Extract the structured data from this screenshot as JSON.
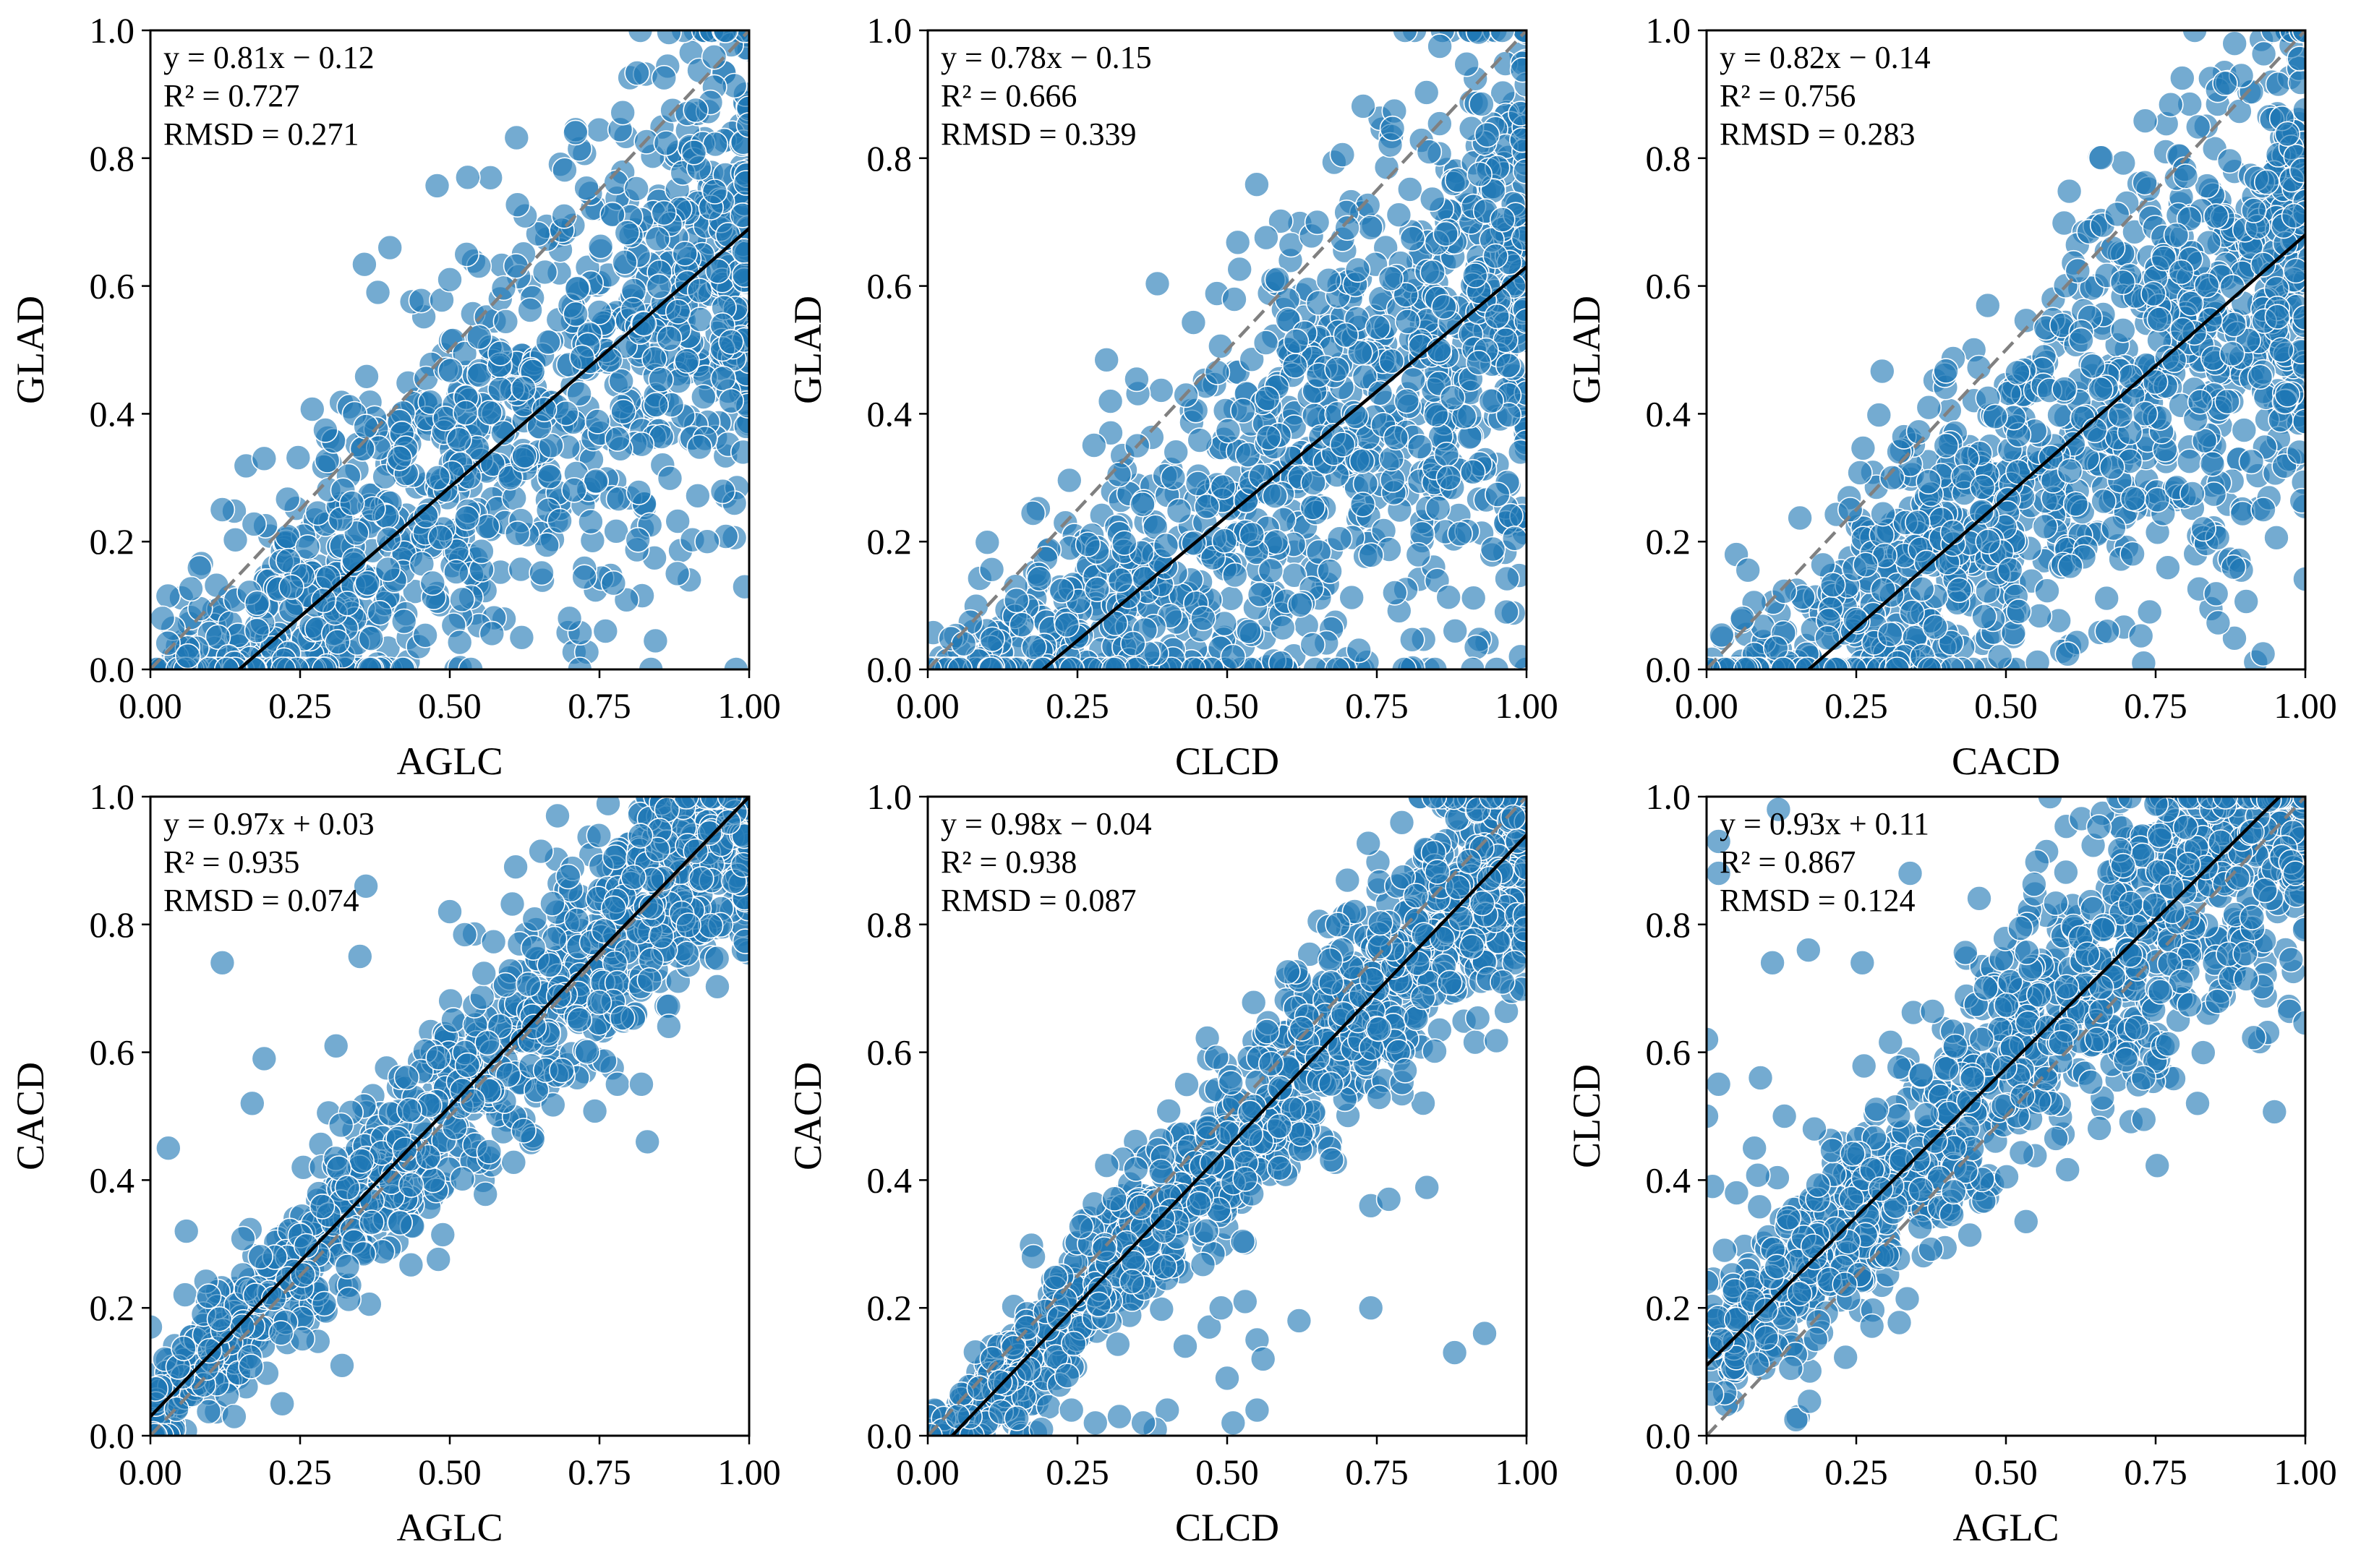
{
  "figure": {
    "panel_count": 6,
    "layout": "2 rows x 3 columns"
  },
  "style": {
    "marker_color": "#1f77b4",
    "marker_edge_color": "#ffffff",
    "fit_line_color": "#000000",
    "identity_line_color": "#808080"
  },
  "chart_data": [
    {
      "type": "scatter",
      "panel": "top-left",
      "xlabel": "AGLC",
      "ylabel": "GLAD",
      "xlim": [
        0,
        1
      ],
      "ylim": [
        0,
        1
      ],
      "xticks": [
        "0.00",
        "0.25",
        "0.50",
        "0.75",
        "1.00"
      ],
      "yticks": [
        "0.0",
        "0.2",
        "0.4",
        "0.6",
        "0.8",
        "1.0"
      ],
      "fit": {
        "slope": 0.81,
        "intercept": -0.12
      },
      "identity_line": true,
      "stats_text": [
        "y = 0.81x − 0.12",
        "R² = 0.727",
        "RMSD = 0.271"
      ],
      "n_points": 1200,
      "outliers": [
        [
          0.38,
          0.59
        ],
        [
          0.4,
          0.66
        ],
        [
          0.5,
          0.61
        ],
        [
          0.53,
          0.77
        ],
        [
          0.71,
          0.84
        ],
        [
          0.19,
          0.33
        ],
        [
          0.12,
          0.25
        ],
        [
          0.02,
          0.08
        ],
        [
          0.36,
          0.38
        ],
        [
          0.48,
          0.3
        ],
        [
          0.7,
          0.08
        ],
        [
          0.76,
          0.06
        ],
        [
          0.9,
          0.14
        ],
        [
          0.88,
          0.15
        ],
        [
          0.93,
          0.2
        ],
        [
          0.99,
          0.34
        ],
        [
          0.97,
          0.42
        ],
        [
          0.62,
          0.05
        ]
      ]
    },
    {
      "type": "scatter",
      "panel": "top-middle",
      "xlabel": "CLCD",
      "ylabel": "GLAD",
      "xlim": [
        0,
        1
      ],
      "ylim": [
        0,
        1
      ],
      "xticks": [
        "0.00",
        "0.25",
        "0.50",
        "0.75",
        "1.00"
      ],
      "yticks": [
        "0.0",
        "0.2",
        "0.4",
        "0.6",
        "0.8",
        "1.0"
      ],
      "fit": {
        "slope": 0.78,
        "intercept": -0.15
      },
      "identity_line": true,
      "stats_text": [
        "y = 0.78x − 0.15",
        "R² = 0.666",
        "RMSD = 0.339"
      ],
      "n_points": 1200,
      "outliers": [
        [
          0.35,
          0.35
        ],
        [
          0.41,
          0.3
        ],
        [
          0.46,
          0.08
        ],
        [
          0.51,
          0.02
        ],
        [
          0.59,
          0.01
        ],
        [
          0.72,
          0.03
        ],
        [
          0.78,
          0.12
        ],
        [
          0.91,
          0.0
        ],
        [
          0.95,
          0.0
        ],
        [
          0.99,
          0.34
        ],
        [
          0.99,
          0.02
        ],
        [
          0.87,
          0.3
        ],
        [
          0.92,
          0.48
        ],
        [
          0.06,
          0.04
        ],
        [
          0.8,
          0.42
        ]
      ]
    },
    {
      "type": "scatter",
      "panel": "top-right",
      "xlabel": "CACD",
      "ylabel": "GLAD",
      "xlim": [
        0,
        1
      ],
      "ylim": [
        0,
        1
      ],
      "xticks": [
        "0.00",
        "0.25",
        "0.50",
        "0.75",
        "1.00"
      ],
      "yticks": [
        "0.0",
        "0.2",
        "0.4",
        "0.6",
        "0.8",
        "1.0"
      ],
      "fit": {
        "slope": 0.82,
        "intercept": -0.14
      },
      "identity_line": true,
      "stats_text": [
        "y = 0.82x − 0.14",
        "R² = 0.756",
        "RMSD = 0.283"
      ],
      "n_points": 1200,
      "outliers": [
        [
          0.24,
          0.25
        ],
        [
          0.31,
          0.3
        ],
        [
          0.4,
          0.35
        ],
        [
          0.47,
          0.2
        ],
        [
          0.74,
          0.09
        ],
        [
          0.73,
          0.01
        ],
        [
          0.88,
          0.16
        ],
        [
          0.93,
          0.25
        ],
        [
          0.99,
          0.34
        ],
        [
          0.97,
          0.43
        ],
        [
          0.96,
          0.5
        ],
        [
          0.06,
          0.08
        ],
        [
          0.83,
          0.22
        ]
      ]
    },
    {
      "type": "scatter",
      "panel": "bottom-left",
      "xlabel": "AGLC",
      "ylabel": "CACD",
      "xlim": [
        0,
        1
      ],
      "ylim": [
        0,
        1
      ],
      "xticks": [
        "0.00",
        "0.25",
        "0.50",
        "0.75",
        "1.00"
      ],
      "yticks": [
        "0.0",
        "0.2",
        "0.4",
        "0.6",
        "0.8",
        "1.0"
      ],
      "fit": {
        "slope": 0.97,
        "intercept": 0.03
      },
      "identity_line": true,
      "stats_text": [
        "y = 0.97x + 0.03",
        "R² = 0.935",
        "RMSD = 0.074"
      ],
      "n_points": 1200,
      "outliers": [
        [
          0.12,
          0.74
        ],
        [
          0.36,
          0.86
        ],
        [
          0.31,
          0.61
        ],
        [
          0.19,
          0.59
        ],
        [
          0.17,
          0.52
        ],
        [
          0.03,
          0.45
        ],
        [
          0.06,
          0.32
        ],
        [
          0.22,
          0.05
        ],
        [
          0.32,
          0.11
        ],
        [
          0.14,
          0.03
        ],
        [
          0.68,
          0.97
        ],
        [
          0.61,
          0.89
        ],
        [
          0.78,
          0.55
        ],
        [
          0.83,
          0.46
        ],
        [
          0.82,
          0.55
        ],
        [
          0.5,
          0.82
        ],
        [
          0.35,
          0.75
        ],
        [
          0.0,
          0.17
        ]
      ]
    },
    {
      "type": "scatter",
      "panel": "bottom-middle",
      "xlabel": "CLCD",
      "ylabel": "CACD",
      "xlim": [
        0,
        1
      ],
      "ylim": [
        0,
        1
      ],
      "xticks": [
        "0.00",
        "0.25",
        "0.50",
        "0.75",
        "1.00"
      ],
      "yticks": [
        "0.0",
        "0.2",
        "0.4",
        "0.6",
        "0.8",
        "1.0"
      ],
      "fit": {
        "slope": 0.98,
        "intercept": -0.04
      },
      "identity_line": true,
      "stats_text": [
        "y = 0.98x − 0.04",
        "R² = 0.938",
        "RMSD = 0.087"
      ],
      "n_points": 1200,
      "outliers": [
        [
          0.43,
          0.14
        ],
        [
          0.47,
          0.17
        ],
        [
          0.49,
          0.2
        ],
        [
          0.53,
          0.21
        ],
        [
          0.55,
          0.15
        ],
        [
          0.56,
          0.12
        ],
        [
          0.62,
          0.18
        ],
        [
          0.5,
          0.09
        ],
        [
          0.51,
          0.02
        ],
        [
          0.55,
          0.04
        ],
        [
          0.4,
          0.04
        ],
        [
          0.32,
          0.03
        ],
        [
          0.38,
          0.01
        ],
        [
          0.74,
          0.2
        ],
        [
          0.88,
          0.13
        ],
        [
          0.93,
          0.16
        ],
        [
          0.74,
          0.36
        ],
        [
          0.77,
          0.37
        ],
        [
          0.98,
          0.74
        ],
        [
          0.96,
          0.71
        ],
        [
          0.05,
          0.03
        ],
        [
          0.24,
          0.04
        ],
        [
          0.28,
          0.02
        ],
        [
          0.36,
          0.02
        ],
        [
          0.19,
          0.01
        ]
      ]
    },
    {
      "type": "scatter",
      "panel": "bottom-right",
      "xlabel": "AGLC",
      "ylabel": "CLCD",
      "xlim": [
        0,
        1
      ],
      "ylim": [
        0,
        1
      ],
      "xticks": [
        "0.00",
        "0.25",
        "0.50",
        "0.75",
        "1.00"
      ],
      "yticks": [
        "0.0",
        "0.2",
        "0.4",
        "0.6",
        "0.8",
        "1.0"
      ],
      "fit": {
        "slope": 0.93,
        "intercept": 0.11
      },
      "identity_line": true,
      "stats_text": [
        "y = 0.93x + 0.11",
        "R² = 0.867",
        "RMSD = 0.124"
      ],
      "n_points": 1200,
      "outliers": [
        [
          0.12,
          0.98
        ],
        [
          0.02,
          0.93
        ],
        [
          0.02,
          0.88
        ],
        [
          0.11,
          0.74
        ],
        [
          0.0,
          0.62
        ],
        [
          0.02,
          0.55
        ],
        [
          0.0,
          0.5
        ],
        [
          0.09,
          0.56
        ],
        [
          0.13,
          0.5
        ],
        [
          0.18,
          0.48
        ],
        [
          0.08,
          0.45
        ],
        [
          0.01,
          0.39
        ],
        [
          0.05,
          0.38
        ],
        [
          0.03,
          0.29
        ],
        [
          0.0,
          0.24
        ],
        [
          0.82,
          0.52
        ],
        [
          0.73,
          0.56
        ],
        [
          0.34,
          0.88
        ],
        [
          0.26,
          0.74
        ],
        [
          0.17,
          0.76
        ]
      ]
    }
  ]
}
